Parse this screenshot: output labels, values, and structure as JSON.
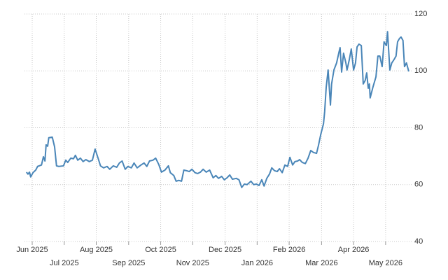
{
  "chart_data": {
    "type": "line",
    "x": [
      2025.402,
      2025.406,
      2025.41,
      2025.413,
      2025.419,
      2025.426,
      2025.431,
      2025.441,
      2025.446,
      2025.45,
      2025.453,
      2025.457,
      2025.46,
      2025.469,
      2025.475,
      2025.48,
      2025.486,
      2025.498,
      2025.504,
      2025.509,
      2025.517,
      2025.524,
      2025.529,
      2025.535,
      2025.542,
      2025.549,
      2025.556,
      2025.565,
      2025.573,
      2025.58,
      2025.587,
      2025.594,
      2025.602,
      2025.611,
      2025.618,
      2025.627,
      2025.636,
      2025.643,
      2025.65,
      2025.658,
      2025.665,
      2025.674,
      2025.681,
      2025.689,
      2025.699,
      2025.707,
      2025.714,
      2025.721,
      2025.73,
      2025.737,
      2025.745,
      2025.752,
      2025.761,
      2025.77,
      2025.775,
      2025.784,
      2025.79,
      2025.797,
      2025.804,
      2025.81,
      2025.817,
      2025.824,
      2025.831,
      2025.839,
      2025.846,
      2025.853,
      2025.86,
      2025.868,
      2025.877,
      2025.886,
      2025.893,
      2025.9,
      2025.908,
      2025.915,
      2025.922,
      2025.929,
      2025.936,
      2025.946,
      2025.953,
      2025.96,
      2025.967,
      2025.974,
      2025.984,
      2025.991,
      2025.998,
      2026.005,
      2026.012,
      2026.018,
      2026.025,
      2026.032,
      2026.038,
      2026.045,
      2026.052,
      2026.058,
      2026.065,
      2026.072,
      2026.079,
      2026.085,
      2026.092,
      2026.098,
      2026.105,
      2026.11,
      2026.117,
      2026.125,
      2026.132,
      2026.139,
      2026.146,
      2026.154,
      2026.159,
      2026.165,
      2026.172,
      2026.175,
      2026.179,
      2026.184,
      2026.19,
      2026.193,
      2026.199,
      2026.206,
      2026.212,
      2026.215,
      2026.219,
      2026.224,
      2026.23,
      2026.233,
      2026.239,
      2026.244,
      2026.25,
      2026.255,
      2026.259,
      2026.264,
      2026.27,
      2026.275,
      2026.28,
      2026.284,
      2026.288,
      2026.291,
      2026.293,
      2026.3,
      2026.308,
      2026.313,
      2026.318,
      2026.324,
      2026.329,
      2026.335,
      2026.338,
      2026.344,
      2026.349,
      2026.355,
      2026.36,
      2026.364,
      2026.369,
      2026.373,
      2026.378,
      2026.382,
      2026.387,
      2026.393
    ],
    "values": [
      64.4,
      63.7,
      64.4,
      62.7,
      64.2,
      65.1,
      66.4,
      66.9,
      69.8,
      68.3,
      74.0,
      73.5,
      76.5,
      76.7,
      73.3,
      66.6,
      66.4,
      66.6,
      68.6,
      67.8,
      69.3,
      69.1,
      70.3,
      68.6,
      69.3,
      68.1,
      68.8,
      68.1,
      68.6,
      72.5,
      69.6,
      66.6,
      65.9,
      66.4,
      65.4,
      66.6,
      66.1,
      67.6,
      68.3,
      65.4,
      66.4,
      65.9,
      67.6,
      65.9,
      66.9,
      67.6,
      66.4,
      68.3,
      68.6,
      69.3,
      67.1,
      64.4,
      65.1,
      66.6,
      64.2,
      63.2,
      61.2,
      61.5,
      61.2,
      65.1,
      64.9,
      64.6,
      65.4,
      64.2,
      63.9,
      64.4,
      65.4,
      64.4,
      65.1,
      62.4,
      63.2,
      62.2,
      62.9,
      61.7,
      62.4,
      63.4,
      61.9,
      62.2,
      61.7,
      59.0,
      60.2,
      60.0,
      61.2,
      60.0,
      60.2,
      59.7,
      61.7,
      59.5,
      62.2,
      63.7,
      65.9,
      64.9,
      64.6,
      65.6,
      64.2,
      66.9,
      66.4,
      69.6,
      66.9,
      68.1,
      68.3,
      68.8,
      67.8,
      67.4,
      69.3,
      72.0,
      71.3,
      71.0,
      73.8,
      77.7,
      81.4,
      85.6,
      94.2,
      100.3,
      88.0,
      95.4,
      100.3,
      102.8,
      106.5,
      108.2,
      99.6,
      106.2,
      102.8,
      100.3,
      104.0,
      107.7,
      100.3,
      102.8,
      108.4,
      109.4,
      108.9,
      95.4,
      96.6,
      99.3,
      93.9,
      95.4,
      90.5,
      94.2,
      97.9,
      105.2,
      105.2,
      101.5,
      110.2,
      108.9,
      113.8,
      100.3,
      102.8,
      104.0,
      105.2,
      110.2,
      111.4,
      111.9,
      110.7,
      101.5,
      102.8,
      99.8
    ],
    "color": "#4a86b8",
    "xlim": [
      2025.397,
      2026.404
    ],
    "xticks": [
      {
        "value": 2025.417,
        "label": "Jun 2025"
      },
      {
        "value": 2025.5,
        "label": "Jul 2025"
      },
      {
        "value": 2025.583,
        "label": "Aug 2025"
      },
      {
        "value": 2025.667,
        "label": "Sep 2025"
      },
      {
        "value": 2025.75,
        "label": "Oct 2025"
      },
      {
        "value": 2025.833,
        "label": "Nov 2025"
      },
      {
        "value": 2025.917,
        "label": "Dec 2025"
      },
      {
        "value": 2026.0,
        "label": "Jan 2026"
      },
      {
        "value": 2026.083,
        "label": "Feb 2026"
      },
      {
        "value": 2026.167,
        "label": "Mar 2026"
      },
      {
        "value": 2026.25,
        "label": "Apr 2026"
      },
      {
        "value": 2026.333,
        "label": "May 2026"
      }
    ],
    "ylim": [
      40,
      120
    ],
    "yticks": [
      40,
      60,
      80,
      100,
      120
    ],
    "grid": true
  }
}
